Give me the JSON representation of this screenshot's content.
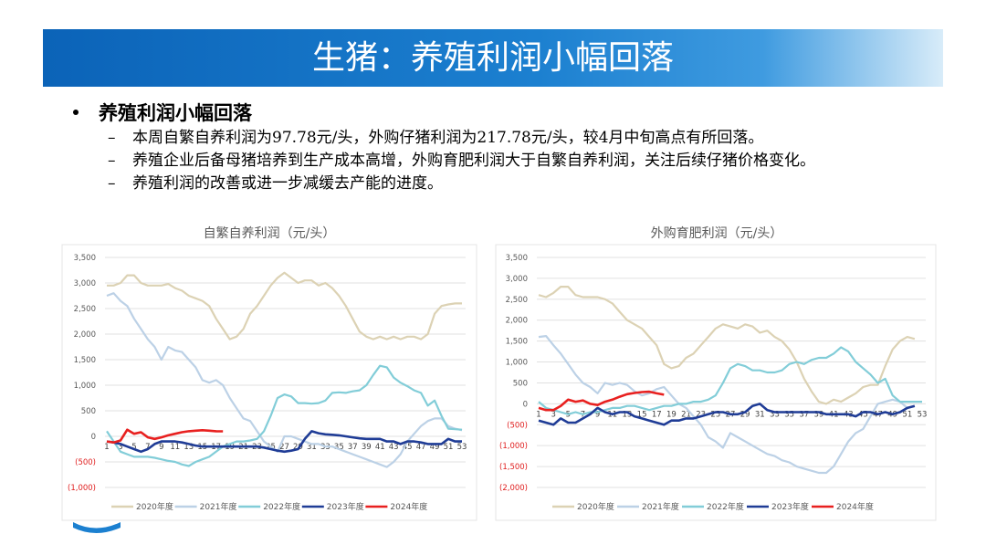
{
  "header": {
    "title": "生猪：养殖利润小幅回落"
  },
  "bullets": {
    "main": "养殖利润小幅回落",
    "items": [
      "本周自繁自养利润为97.78元/头，外购仔猪利润为217.78元/头，较4月中旬高点有所回落。",
      "养殖企业后备母猪培养到生产成本高增，外购育肥利润大于自繁自养利润，关注后续仔猪价格变化。",
      "养殖利润的改善或进一步减缓去产能的进度。"
    ]
  },
  "chart_data": [
    {
      "type": "line",
      "title": "自繁自养利润（元/头）",
      "categories": [
        1,
        null,
        3,
        null,
        5,
        null,
        7,
        null,
        9,
        null,
        11,
        null,
        13,
        null,
        15,
        null,
        17,
        null,
        19,
        null,
        21,
        null,
        23,
        null,
        25,
        null,
        27,
        null,
        29,
        null,
        31,
        null,
        33,
        null,
        35,
        null,
        37,
        null,
        39,
        null,
        41,
        null,
        43,
        null,
        45,
        null,
        47,
        null,
        49,
        null,
        51,
        null,
        53
      ],
      "ylim": [
        -1000,
        3500
      ],
      "yticks": [
        {
          "value": -1000,
          "label": "(1,000)"
        },
        {
          "value": -500,
          "label": "(500)"
        },
        0,
        500,
        {
          "value": 1000,
          "label": "1,000"
        },
        {
          "value": 1500,
          "label": "1,500"
        },
        {
          "value": 2000,
          "label": "2,000"
        },
        {
          "value": 2500,
          "label": "2,500"
        },
        {
          "value": 3000,
          "label": "3,000"
        },
        {
          "value": 3500,
          "label": "3,500"
        }
      ],
      "grid": true,
      "legend": "bottom",
      "series": [
        {
          "name": "2020年度",
          "color": "#dcd2b4",
          "values": [
            2950,
            2950,
            3000,
            3150,
            3150,
            3000,
            2950,
            2950,
            2950,
            2980,
            2900,
            2850,
            2750,
            2700,
            2650,
            2550,
            2300,
            2100,
            1900,
            1950,
            2100,
            2400,
            2550,
            2750,
            2950,
            3100,
            3200,
            3100,
            3000,
            3050,
            3050,
            2950,
            3000,
            2900,
            2750,
            2550,
            2300,
            2050,
            1950,
            1900,
            1950,
            1900,
            1950,
            1900,
            1950,
            1950,
            1900,
            2000,
            2400,
            2550,
            2580,
            2600,
            2600
          ]
        },
        {
          "name": "2021年度",
          "color": "#bcd1e6",
          "values": [
            2750,
            2800,
            2650,
            2550,
            2300,
            2100,
            1900,
            1750,
            1500,
            1750,
            1680,
            1650,
            1500,
            1350,
            1100,
            1050,
            1100,
            1000,
            750,
            550,
            350,
            300,
            100,
            -100,
            -200,
            -300,
            0,
            0,
            -50,
            -100,
            -150,
            -150,
            -200,
            -200,
            -250,
            -300,
            -350,
            -400,
            -450,
            -500,
            -550,
            -600,
            -500,
            -350,
            -100,
            50,
            200,
            300,
            350,
            350,
            200,
            150,
            120
          ]
        },
        {
          "name": "2022年度",
          "color": "#82cdd8",
          "values": [
            100,
            -100,
            -300,
            -350,
            -400,
            -400,
            -400,
            -420,
            -450,
            -480,
            -500,
            -550,
            -580,
            -500,
            -450,
            -400,
            -300,
            -200,
            -150,
            -100,
            -100,
            -80,
            -50,
            100,
            400,
            750,
            820,
            780,
            650,
            650,
            640,
            650,
            700,
            850,
            860,
            850,
            880,
            900,
            1000,
            1200,
            1380,
            1350,
            1150,
            1050,
            980,
            900,
            850,
            600,
            700,
            400,
            150,
            140,
            130
          ]
        },
        {
          "name": "2023年度",
          "color": "#1f3c96",
          "values": [
            -100,
            -120,
            -150,
            -200,
            -250,
            -300,
            -250,
            -150,
            -100,
            -100,
            -100,
            -120,
            -150,
            -180,
            -200,
            -200,
            -200,
            -200,
            -200,
            -200,
            -200,
            -200,
            -200,
            -220,
            -250,
            -280,
            -300,
            -280,
            -250,
            -50,
            100,
            60,
            40,
            30,
            20,
            0,
            -20,
            -40,
            -50,
            -50,
            -50,
            -100,
            -100,
            -150,
            -100,
            -100,
            -120,
            -150,
            -150,
            -150,
            -50,
            -100,
            -100
          ]
        },
        {
          "name": "2024年度",
          "color": "#e8201f",
          "values": [
            -100,
            -120,
            -80,
            130,
            50,
            80,
            -20,
            -50,
            -20,
            20,
            50,
            80,
            100,
            110,
            120,
            110,
            100,
            98,
            null,
            null,
            null,
            null,
            null,
            null,
            null,
            null,
            null,
            null,
            null,
            null,
            null,
            null,
            null,
            null,
            null,
            null,
            null,
            null,
            null,
            null,
            null,
            null,
            null,
            null,
            null,
            null,
            null,
            null,
            null,
            null,
            null,
            null,
            null
          ]
        }
      ]
    },
    {
      "type": "line",
      "title": "外购育肥利润（元/头）",
      "categories": [
        1,
        null,
        3,
        null,
        5,
        null,
        7,
        null,
        9,
        null,
        11,
        null,
        13,
        null,
        15,
        null,
        17,
        null,
        19,
        null,
        21,
        null,
        23,
        null,
        25,
        null,
        27,
        null,
        29,
        null,
        31,
        null,
        33,
        null,
        35,
        null,
        37,
        null,
        39,
        null,
        41,
        null,
        43,
        null,
        45,
        null,
        47,
        null,
        49,
        null,
        51,
        null,
        53
      ],
      "ylim": [
        -2000,
        3500
      ],
      "yticks": [
        {
          "value": -2000,
          "label": "(2,000)"
        },
        {
          "value": -1500,
          "label": "(1,500)"
        },
        {
          "value": -1000,
          "label": "(1,000)"
        },
        {
          "value": -500,
          "label": "(500)"
        },
        0,
        500,
        {
          "value": 1000,
          "label": "1,000"
        },
        {
          "value": 1500,
          "label": "1,500"
        },
        {
          "value": 2000,
          "label": "2,000"
        },
        {
          "value": 2500,
          "label": "2,500"
        },
        {
          "value": 3000,
          "label": "3,000"
        },
        {
          "value": 3500,
          "label": "3,500"
        }
      ],
      "grid": true,
      "legend": "bottom",
      "series": [
        {
          "name": "2020年度",
          "color": "#dcd2b4",
          "values": [
            2600,
            2550,
            2650,
            2800,
            2800,
            2600,
            2550,
            2550,
            2550,
            2500,
            2400,
            2200,
            2000,
            1900,
            1800,
            1600,
            1400,
            950,
            850,
            900,
            1100,
            1200,
            1400,
            1600,
            1800,
            1900,
            1850,
            1800,
            1900,
            1850,
            1700,
            1750,
            1600,
            1500,
            1300,
            1000,
            600,
            300,
            50,
            0,
            100,
            50,
            150,
            250,
            400,
            450,
            450,
            900,
            1300,
            1500,
            1600,
            1550,
            null
          ]
        },
        {
          "name": "2021年度",
          "color": "#bcd1e6",
          "values": [
            1600,
            1620,
            1400,
            1200,
            950,
            700,
            500,
            400,
            250,
            500,
            450,
            500,
            450,
            300,
            200,
            250,
            350,
            400,
            200,
            0,
            -100,
            -300,
            -500,
            -800,
            -900,
            -1050,
            -700,
            -800,
            -900,
            -1000,
            -1100,
            -1200,
            -1250,
            -1350,
            -1400,
            -1500,
            -1550,
            -1600,
            -1650,
            -1650,
            -1500,
            -1200,
            -900,
            -700,
            -600,
            -300,
            0,
            50,
            100,
            50,
            -100,
            null,
            null
          ]
        },
        {
          "name": "2022年度",
          "color": "#82cdd8",
          "values": [
            50,
            -100,
            -150,
            -200,
            -250,
            -200,
            -250,
            -200,
            -200,
            -150,
            -100,
            -100,
            -50,
            -50,
            -100,
            -150,
            -100,
            -50,
            -50,
            0,
            0,
            50,
            50,
            100,
            200,
            500,
            850,
            950,
            900,
            800,
            800,
            750,
            750,
            800,
            950,
            1000,
            950,
            1050,
            1100,
            1100,
            1200,
            1350,
            1250,
            1000,
            850,
            700,
            500,
            600,
            200,
            50,
            50,
            50,
            50
          ]
        },
        {
          "name": "2023年度",
          "color": "#1f3c96",
          "values": [
            -400,
            -450,
            -500,
            -350,
            -450,
            -450,
            -350,
            -250,
            -100,
            -200,
            -250,
            -200,
            -200,
            -300,
            -350,
            -400,
            -450,
            -500,
            -400,
            -400,
            -350,
            -350,
            -300,
            -250,
            -200,
            -200,
            -250,
            -250,
            -200,
            -50,
            0,
            -150,
            -200,
            -200,
            -200,
            -200,
            -200,
            -200,
            -200,
            -250,
            -250,
            -250,
            -250,
            -300,
            -200,
            -200,
            -250,
            -200,
            -250,
            -200,
            -100,
            -50,
            null
          ]
        },
        {
          "name": "2024年度",
          "color": "#e8201f",
          "values": [
            -100,
            -150,
            -150,
            -50,
            100,
            50,
            80,
            0,
            -30,
            50,
            100,
            170,
            230,
            260,
            280,
            290,
            250,
            218,
            null,
            null,
            null,
            null,
            null,
            null,
            null,
            null,
            null,
            null,
            null,
            null,
            null,
            null,
            null,
            null,
            null,
            null,
            null,
            null,
            null,
            null,
            null,
            null,
            null,
            null,
            null,
            null,
            null,
            null,
            null,
            null,
            null,
            null,
            null
          ]
        }
      ]
    }
  ]
}
